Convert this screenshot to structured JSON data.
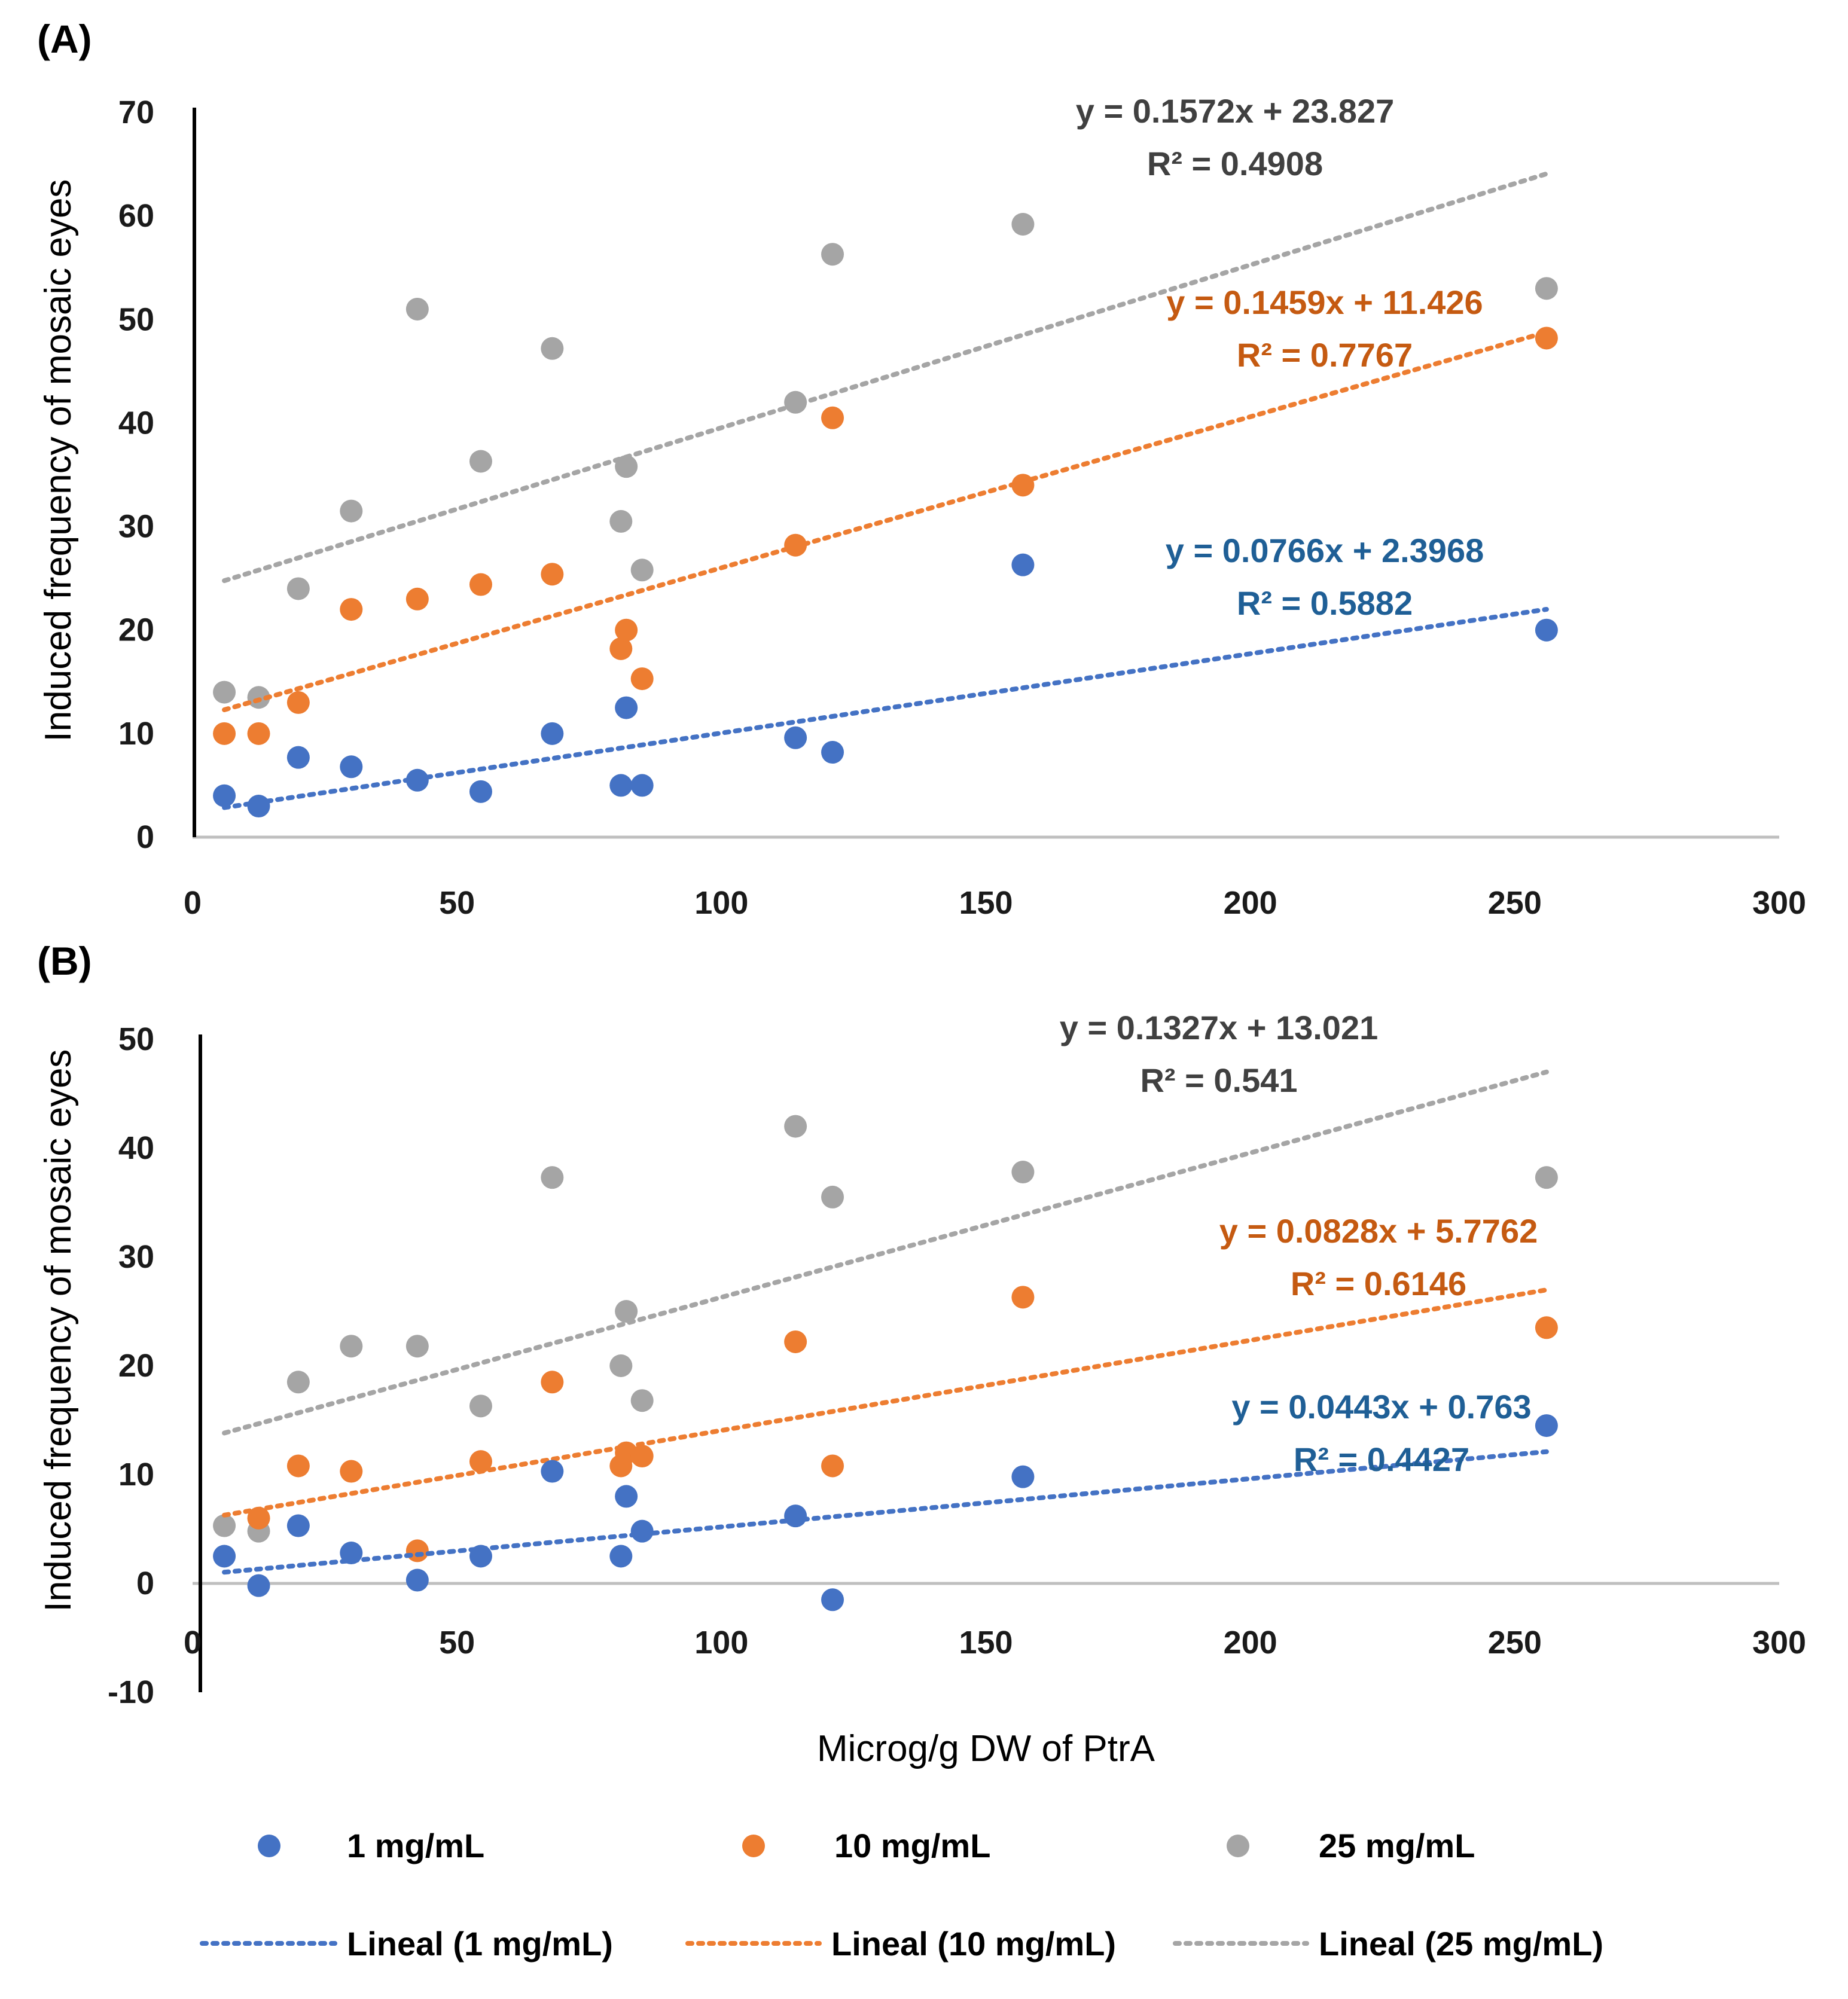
{
  "chart_data": [
    {
      "type": "scatter",
      "panel_label": "(A)",
      "xlabel": "",
      "ylabel": "Induced frequency of mosaic eyes",
      "xlim": [
        0,
        300
      ],
      "ylim": [
        0,
        70
      ],
      "xticks": [
        0,
        50,
        100,
        150,
        200,
        250,
        300
      ],
      "yticks": [
        0,
        10,
        20,
        30,
        40,
        50,
        60,
        70
      ],
      "series": [
        {
          "name": "1 mg/mL",
          "color": "#4472C4",
          "eqColor": "#1F5F96",
          "trend": {
            "slope": 0.0766,
            "intercept": 2.3968,
            "x0": 6,
            "x1": 256,
            "equation": "y = 0.0766x + 2.3968",
            "r2": "R² = 0.5882"
          },
          "points": [
            [
              6,
              4
            ],
            [
              12.5,
              3
            ],
            [
              20,
              7.7
            ],
            [
              30,
              6.8
            ],
            [
              42.5,
              5.5
            ],
            [
              54.5,
              4.4
            ],
            [
              68,
              10
            ],
            [
              81,
              5
            ],
            [
              82,
              12.5
            ],
            [
              85,
              5
            ],
            [
              114,
              9.6
            ],
            [
              121,
              8.2
            ],
            [
              157,
              26.3
            ],
            [
              256,
              20
            ]
          ]
        },
        {
          "name": "10 mg/mL",
          "color": "#ED7D31",
          "eqColor": "#C55A11",
          "trend": {
            "slope": 0.1459,
            "intercept": 11.426,
            "x0": 6,
            "x1": 256,
            "equation": "y = 0.1459x + 11.426",
            "r2": "R² = 0.7767"
          },
          "points": [
            [
              6,
              10
            ],
            [
              12.5,
              10
            ],
            [
              20,
              13
            ],
            [
              30,
              22
            ],
            [
              42.5,
              23
            ],
            [
              54.5,
              24.4
            ],
            [
              68,
              25.4
            ],
            [
              81,
              18.2
            ],
            [
              82,
              20
            ],
            [
              85,
              15.3
            ],
            [
              114,
              28.2
            ],
            [
              121,
              40.5
            ],
            [
              157,
              34
            ],
            [
              256,
              48.2
            ]
          ]
        },
        {
          "name": "25 mg/mL",
          "color": "#A5A5A5",
          "eqColor": "#404040",
          "trend": {
            "slope": 0.1572,
            "intercept": 23.827,
            "x0": 6,
            "x1": 256,
            "equation": "y = 0.1572x + 23.827",
            "r2": "R² = 0.4908"
          },
          "points": [
            [
              6,
              14
            ],
            [
              12.5,
              13.5
            ],
            [
              20,
              24
            ],
            [
              30,
              31.5
            ],
            [
              42.5,
              51
            ],
            [
              54.5,
              36.3
            ],
            [
              68,
              47.2
            ],
            [
              81,
              30.5
            ],
            [
              82,
              35.8
            ],
            [
              85,
              25.8
            ],
            [
              114,
              42
            ],
            [
              121,
              56.3
            ],
            [
              157,
              59.2
            ],
            [
              256,
              53
            ]
          ]
        }
      ]
    },
    {
      "type": "scatter",
      "panel_label": "(B)",
      "xlabel": "Microg/g DW of PtrA",
      "ylabel": "Induced frequency of mosaic eyes",
      "xlim": [
        0,
        300
      ],
      "ylim": [
        -10,
        50
      ],
      "xticks": [
        0,
        50,
        100,
        150,
        200,
        250,
        300
      ],
      "yticks": [
        -10,
        0,
        10,
        20,
        30,
        40,
        50
      ],
      "series": [
        {
          "name": "1 mg/mL",
          "color": "#4472C4",
          "eqColor": "#1F5F96",
          "trend": {
            "slope": 0.0443,
            "intercept": 0.763,
            "x0": 6,
            "x1": 256,
            "equation": "y = 0.0443x + 0.763",
            "r2": "R² = 0.4427"
          },
          "points": [
            [
              6,
              2.5
            ],
            [
              12.5,
              -0.2
            ],
            [
              20,
              5.3
            ],
            [
              30,
              2.8
            ],
            [
              42.5,
              0.3
            ],
            [
              54.5,
              2.5
            ],
            [
              68,
              10.3
            ],
            [
              81,
              2.5
            ],
            [
              82,
              8
            ],
            [
              85,
              4.8
            ],
            [
              114,
              6.2
            ],
            [
              121,
              -1.5
            ],
            [
              157,
              9.8
            ],
            [
              256,
              14.5
            ]
          ]
        },
        {
          "name": "10 mg/mL",
          "color": "#ED7D31",
          "eqColor": "#C55A11",
          "trend": {
            "slope": 0.0828,
            "intercept": 5.7762,
            "x0": 6,
            "x1": 256,
            "equation": "y = 0.0828x + 5.7762",
            "r2": "R² = 0.6146"
          },
          "points": [
            [
              12.5,
              6
            ],
            [
              20,
              10.8
            ],
            [
              30,
              10.3
            ],
            [
              42.5,
              3
            ],
            [
              54.5,
              11.2
            ],
            [
              68,
              18.5
            ],
            [
              81,
              10.8
            ],
            [
              82,
              12
            ],
            [
              85,
              11.7
            ],
            [
              114,
              22.2
            ],
            [
              121,
              10.8
            ],
            [
              157,
              26.3
            ],
            [
              256,
              23.5
            ]
          ]
        },
        {
          "name": "25 mg/mL",
          "color": "#A5A5A5",
          "eqColor": "#404040",
          "trend": {
            "slope": 0.1327,
            "intercept": 13.021,
            "x0": 6,
            "x1": 256,
            "equation": "y = 0.1327x + 13.021",
            "r2": "R² = 0.541"
          },
          "points": [
            [
              6,
              5.3
            ],
            [
              12.5,
              4.8
            ],
            [
              20,
              18.5
            ],
            [
              30,
              21.8
            ],
            [
              42.5,
              21.8
            ],
            [
              54.5,
              16.3
            ],
            [
              68,
              37.3
            ],
            [
              81,
              20
            ],
            [
              82,
              25
            ],
            [
              85,
              16.8
            ],
            [
              114,
              42
            ],
            [
              121,
              35.5
            ],
            [
              157,
              37.8
            ],
            [
              256,
              37.3
            ]
          ]
        }
      ]
    }
  ],
  "legend": {
    "markers": [
      "1 mg/mL",
      "10 mg/mL",
      "25 mg/mL"
    ],
    "lines": [
      "Lineal (1 mg/mL)",
      "Lineal (10 mg/mL)",
      "Lineal (25 mg/mL)"
    ]
  }
}
